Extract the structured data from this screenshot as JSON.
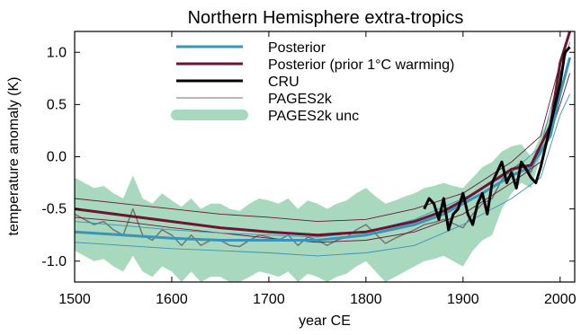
{
  "chart_data": {
    "type": "line",
    "title": "Northern Hemisphere extra-tropics",
    "xlabel": "year CE",
    "ylabel": "temperature anomaly (K)",
    "xlim": [
      1500,
      2015
    ],
    "ylim": [
      -1.2,
      1.2
    ],
    "x_ticks": [
      {
        "v": 1500,
        "label": "1500"
      },
      {
        "v": 1600,
        "label": "1600"
      },
      {
        "v": 1700,
        "label": "1700"
      },
      {
        "v": 1800,
        "label": "1800"
      },
      {
        "v": 1900,
        "label": "1900"
      },
      {
        "v": 2000,
        "label": "2000"
      }
    ],
    "y_ticks": [
      {
        "v": 1.0,
        "label": "1.0"
      },
      {
        "v": 0.5,
        "label": "0.5"
      },
      {
        "v": 0.0,
        "label": "0.0"
      },
      {
        "v": -0.5,
        "label": "-0.5"
      },
      {
        "v": -1.0,
        "label": "-1.0"
      }
    ],
    "grid": false,
    "legend_position": "top-center",
    "legend": [
      {
        "label": "Posterior",
        "color": "#3a93b8",
        "style": "thick"
      },
      {
        "label": "Posterior (prior 1°C warming)",
        "color": "#6b1530",
        "style": "thick"
      },
      {
        "label": "CRU",
        "color": "#000000",
        "style": "thick"
      },
      {
        "label": "PAGES2k",
        "color": "#707070",
        "style": "thin"
      },
      {
        "label": "PAGES2k unc",
        "color": "#a8d8be",
        "style": "band"
      }
    ],
    "series": [
      {
        "name": "PAGES2k unc",
        "kind": "band",
        "color": "#a8d8be",
        "x": [
          1500,
          1510,
          1520,
          1530,
          1540,
          1550,
          1560,
          1570,
          1580,
          1590,
          1600,
          1610,
          1620,
          1630,
          1640,
          1650,
          1660,
          1670,
          1680,
          1690,
          1700,
          1710,
          1720,
          1730,
          1740,
          1750,
          1760,
          1770,
          1780,
          1790,
          1800,
          1810,
          1820,
          1830,
          1840,
          1850,
          1860,
          1870,
          1880,
          1890,
          1900,
          1910,
          1920,
          1930,
          1940,
          1950,
          1960,
          1970,
          1980,
          1990,
          2000
        ],
        "upper": [
          -0.2,
          -0.25,
          -0.3,
          -0.28,
          -0.35,
          -0.4,
          -0.18,
          -0.4,
          -0.45,
          -0.35,
          -0.42,
          -0.48,
          -0.4,
          -0.5,
          -0.45,
          -0.45,
          -0.5,
          -0.52,
          -0.45,
          -0.4,
          -0.42,
          -0.45,
          -0.4,
          -0.5,
          -0.42,
          -0.45,
          -0.5,
          -0.45,
          -0.42,
          -0.35,
          -0.3,
          -0.38,
          -0.45,
          -0.42,
          -0.38,
          -0.35,
          -0.3,
          -0.28,
          -0.25,
          -0.28,
          -0.3,
          -0.2,
          -0.1,
          -0.05,
          0.05,
          0.1,
          0.12,
          0.0,
          0.2,
          0.4,
          0.9
        ],
        "lower": [
          -0.9,
          -0.95,
          -1.0,
          -0.98,
          -1.05,
          -1.1,
          -0.95,
          -1.1,
          -1.15,
          -1.05,
          -1.1,
          -1.2,
          -1.1,
          -1.2,
          -1.15,
          -1.15,
          -1.2,
          -1.2,
          -1.15,
          -1.1,
          -1.12,
          -1.15,
          -1.1,
          -1.2,
          -1.12,
          -1.15,
          -1.2,
          -1.15,
          -1.12,
          -1.05,
          -1.0,
          -1.1,
          -1.2,
          -1.15,
          -1.1,
          -1.05,
          -1.0,
          -0.98,
          -0.95,
          -1.0,
          -1.05,
          -0.9,
          -0.8,
          -0.75,
          -0.5,
          -0.35,
          -0.25,
          -0.3,
          0.0,
          0.2,
          0.6
        ]
      },
      {
        "name": "PAGES2k",
        "kind": "line",
        "color": "#707070",
        "x": [
          1500,
          1510,
          1520,
          1530,
          1540,
          1550,
          1560,
          1570,
          1580,
          1590,
          1600,
          1610,
          1620,
          1630,
          1640,
          1650,
          1660,
          1670,
          1680,
          1690,
          1700,
          1710,
          1720,
          1730,
          1740,
          1750,
          1760,
          1770,
          1780,
          1790,
          1800,
          1810,
          1820,
          1830,
          1840,
          1850,
          1860,
          1870,
          1880,
          1890,
          1900,
          1910,
          1920,
          1930,
          1940,
          1950,
          1960,
          1970,
          1980,
          1990,
          2000
        ],
        "y": [
          -0.55,
          -0.6,
          -0.65,
          -0.62,
          -0.7,
          -0.75,
          -0.5,
          -0.75,
          -0.8,
          -0.7,
          -0.75,
          -0.85,
          -0.75,
          -0.85,
          -0.8,
          -0.8,
          -0.85,
          -0.86,
          -0.8,
          -0.75,
          -0.77,
          -0.8,
          -0.75,
          -0.85,
          -0.77,
          -0.8,
          -0.85,
          -0.8,
          -0.77,
          -0.7,
          -0.65,
          -0.74,
          -0.83,
          -0.78,
          -0.74,
          -0.7,
          -0.65,
          -0.63,
          -0.6,
          -0.64,
          -0.68,
          -0.55,
          -0.45,
          -0.4,
          -0.22,
          -0.12,
          -0.06,
          -0.15,
          0.1,
          0.3,
          0.75
        ]
      },
      {
        "name": "Posterior (prior 1°C warming) upper",
        "kind": "thin",
        "color": "#6b1530",
        "x": [
          1500,
          1550,
          1600,
          1650,
          1700,
          1750,
          1800,
          1850,
          1900,
          1950,
          1980,
          2000,
          2010
        ],
        "y": [
          -0.4,
          -0.45,
          -0.5,
          -0.55,
          -0.58,
          -0.62,
          -0.6,
          -0.5,
          -0.35,
          -0.05,
          0.2,
          0.9,
          1.2
        ]
      },
      {
        "name": "Posterior (prior 1°C warming) lower",
        "kind": "thin",
        "color": "#6b1530",
        "x": [
          1500,
          1550,
          1600,
          1650,
          1700,
          1750,
          1800,
          1850,
          1900,
          1950,
          1980,
          2000,
          2010
        ],
        "y": [
          -0.58,
          -0.62,
          -0.68,
          -0.73,
          -0.78,
          -0.82,
          -0.8,
          -0.72,
          -0.55,
          -0.25,
          -0.05,
          0.5,
          0.8
        ]
      },
      {
        "name": "Posterior upper",
        "kind": "thin",
        "color": "#3a93b8",
        "x": [
          1500,
          1550,
          1600,
          1650,
          1700,
          1750,
          1800,
          1850,
          1900,
          1950,
          1980,
          2000,
          2010
        ],
        "y": [
          -0.62,
          -0.66,
          -0.7,
          -0.73,
          -0.75,
          -0.77,
          -0.72,
          -0.6,
          -0.4,
          -0.15,
          0.1,
          0.8,
          1.1
        ]
      },
      {
        "name": "Posterior lower",
        "kind": "thin",
        "color": "#3a93b8",
        "x": [
          1500,
          1550,
          1600,
          1650,
          1700,
          1750,
          1800,
          1850,
          1900,
          1950,
          1980,
          2000,
          2010
        ],
        "y": [
          -0.82,
          -0.85,
          -0.88,
          -0.9,
          -0.92,
          -0.95,
          -0.92,
          -0.85,
          -0.65,
          -0.4,
          -0.2,
          0.4,
          0.6
        ]
      },
      {
        "name": "Posterior",
        "kind": "thick",
        "color": "#3a93b8",
        "x": [
          1500,
          1550,
          1600,
          1650,
          1700,
          1750,
          1800,
          1850,
          1880,
          1900,
          1920,
          1950,
          1970,
          1990,
          2000,
          2010
        ],
        "y": [
          -0.72,
          -0.75,
          -0.78,
          -0.8,
          -0.8,
          -0.8,
          -0.75,
          -0.65,
          -0.55,
          -0.45,
          -0.35,
          -0.18,
          -0.1,
          0.2,
          0.6,
          0.95
        ]
      },
      {
        "name": "Posterior (prior 1°C warming)",
        "kind": "thick",
        "color": "#6b1530",
        "x": [
          1500,
          1550,
          1600,
          1650,
          1700,
          1750,
          1800,
          1850,
          1880,
          1900,
          1920,
          1950,
          1970,
          1990,
          2000,
          2010
        ],
        "y": [
          -0.5,
          -0.56,
          -0.62,
          -0.68,
          -0.72,
          -0.75,
          -0.72,
          -0.62,
          -0.52,
          -0.42,
          -0.3,
          -0.12,
          -0.08,
          0.3,
          0.9,
          1.2
        ]
      },
      {
        "name": "CRU",
        "kind": "thick",
        "color": "#000000",
        "x": [
          1860,
          1865,
          1870,
          1875,
          1880,
          1885,
          1890,
          1895,
          1900,
          1905,
          1910,
          1915,
          1920,
          1925,
          1930,
          1935,
          1940,
          1945,
          1950,
          1955,
          1960,
          1965,
          1970,
          1975,
          1980,
          1985,
          1990,
          1995,
          2000,
          2005,
          2010
        ],
        "y": [
          -0.5,
          -0.4,
          -0.45,
          -0.6,
          -0.4,
          -0.7,
          -0.55,
          -0.5,
          -0.35,
          -0.55,
          -0.65,
          -0.45,
          -0.35,
          -0.55,
          -0.25,
          -0.15,
          -0.05,
          -0.25,
          -0.15,
          -0.3,
          -0.05,
          -0.12,
          -0.2,
          -0.25,
          -0.1,
          0.1,
          0.3,
          0.5,
          0.7,
          1.0,
          1.05
        ]
      }
    ]
  }
}
